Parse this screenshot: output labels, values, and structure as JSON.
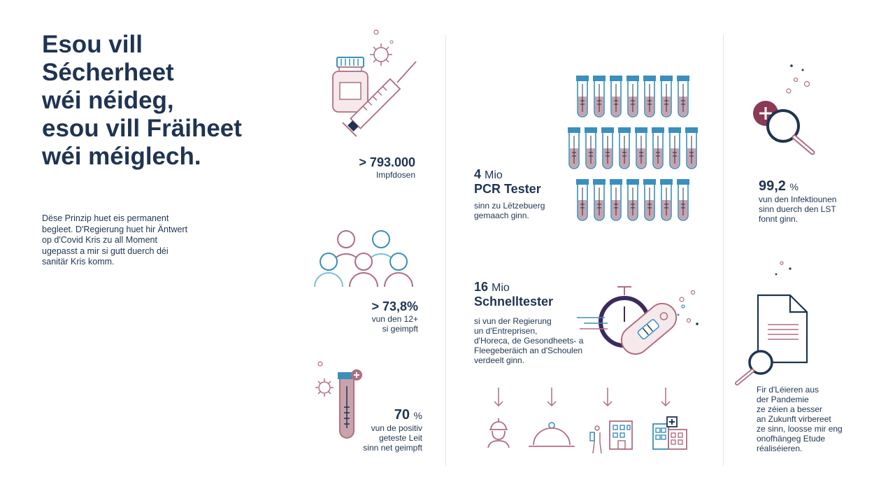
{
  "headline": {
    "line1": "Esou vill",
    "line2": "Sécherheet",
    "line3": "wéi néideg,",
    "line4": "esou vill Fräiheet",
    "line5": "wéi méiglech."
  },
  "intro": {
    "line1": "Dëse Prinzip huet eis permanent",
    "line2": "begleet. D'Regierung huet hir Äntwert",
    "line3": "op d'Covid Kris zu all Moment",
    "line4": "ugepasst a mir si gutt duerch déi",
    "line5": "sanitär Kris komm."
  },
  "vaccines": {
    "value": "> 793.000",
    "label": "Impfdosen"
  },
  "vaccinated": {
    "value": "> 73,8%",
    "line1": "vun den 12+",
    "line2": "si geimpft"
  },
  "positive": {
    "value": "70",
    "unit": "%",
    "line1": "vun de positiv",
    "line2": "geteste Leit",
    "line3": "sinn net geimpft"
  },
  "pcr": {
    "value": "4",
    "unit": "Mio",
    "title": "PCR Tester",
    "line1": "sinn zu Lëtzebuerg",
    "line2": "gemaach ginn."
  },
  "rapid": {
    "value": "16",
    "unit": "Mio",
    "title": "Schnelltester",
    "line1": "si vun der Regierung",
    "line2": "un d'Entreprisen,",
    "line3": "d'Horeca, de Gesondheets- a",
    "line4": "Fleegeberäich an d'Schoulen",
    "line5": "verdeelt ginn."
  },
  "lst": {
    "value": "99,2",
    "unit": "%",
    "line1": "vun den Infektiounen",
    "line2": "sinn duerch den LST",
    "line3": "fonnt ginn."
  },
  "study": {
    "line1": "Fir d'Léieren aus",
    "line2": "der Pandemie",
    "line3": "ze zéien a besser",
    "line4": "an Zukunft virbereet",
    "line5": "ze sinn, loosse mir eng",
    "line6": "onofhängeg Etude",
    "line7": "réaliséieren."
  },
  "colors": {
    "navy": "#1f3452",
    "rose": "#b06e80",
    "rose_fill": "#c9a3ac",
    "blue": "#3a8fbd",
    "maroon": "#8a3a55",
    "teal": "#7bbfd6"
  },
  "icons": [
    "vaccine-vial-syringe-icon",
    "people-group-icon",
    "test-tube-virus-icon",
    "test-tubes-rack-icon",
    "stopwatch-rapid-test-icon",
    "construction-worker-icon",
    "restaurant-cloche-icon",
    "care-building-icon",
    "hospital-school-icon",
    "magnifier-plus-icon",
    "document-magnifier-icon"
  ]
}
